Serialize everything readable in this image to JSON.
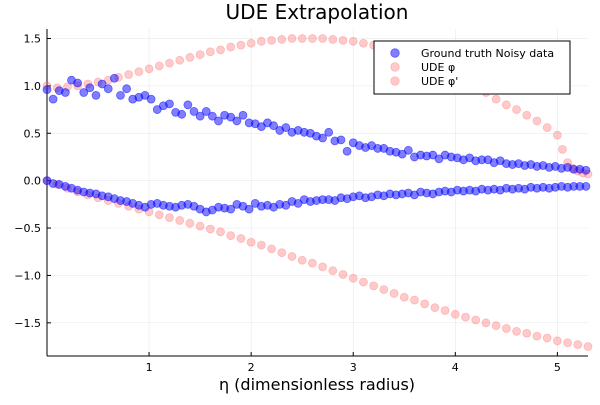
{
  "chart_data": {
    "type": "scatter",
    "title": "UDE Extrapolation",
    "xlabel": "η (dimensionless radius)",
    "ylabel": "",
    "xlim": [
      0.0,
      5.3
    ],
    "ylim": [
      -1.85,
      1.6
    ],
    "x_ticks": [
      1,
      2,
      3,
      4,
      5
    ],
    "y_ticks": [
      1.5,
      1.0,
      0.5,
      0.0,
      -0.5,
      -1.0,
      -1.5
    ],
    "x_tick_labels": [
      "1",
      "2",
      "3",
      "4",
      "5"
    ],
    "y_tick_labels": [
      "1.5",
      "1.0",
      "0.5",
      "0.0",
      "−0.5",
      "−1.0",
      "−1.5"
    ],
    "grid": true,
    "legend_position": "top-right",
    "series": [
      {
        "name": "Ground truth Noisy data",
        "color": "#0000FF",
        "opacity": 0.5,
        "points": [
          [
            0.0,
            0.96
          ],
          [
            0.06,
            0.86
          ],
          [
            0.12,
            0.95
          ],
          [
            0.18,
            0.93
          ],
          [
            0.24,
            1.06
          ],
          [
            0.3,
            1.03
          ],
          [
            0.36,
            0.93
          ],
          [
            0.42,
            0.98
          ],
          [
            0.48,
            0.9
          ],
          [
            0.54,
            1.02
          ],
          [
            0.6,
            0.97
          ],
          [
            0.66,
            1.08
          ],
          [
            0.72,
            0.9
          ],
          [
            0.78,
            0.97
          ],
          [
            0.84,
            0.86
          ],
          [
            0.9,
            0.88
          ],
          [
            0.96,
            0.9
          ],
          [
            1.02,
            0.86
          ],
          [
            1.08,
            0.75
          ],
          [
            1.14,
            0.79
          ],
          [
            1.2,
            0.81
          ],
          [
            1.26,
            0.72
          ],
          [
            1.32,
            0.7
          ],
          [
            1.38,
            0.8
          ],
          [
            1.44,
            0.73
          ],
          [
            1.5,
            0.68
          ],
          [
            1.56,
            0.73
          ],
          [
            1.62,
            0.68
          ],
          [
            1.68,
            0.63
          ],
          [
            1.74,
            0.69
          ],
          [
            1.8,
            0.67
          ],
          [
            1.86,
            0.63
          ],
          [
            1.92,
            0.69
          ],
          [
            1.98,
            0.61
          ],
          [
            2.04,
            0.6
          ],
          [
            2.1,
            0.57
          ],
          [
            2.16,
            0.61
          ],
          [
            2.22,
            0.58
          ],
          [
            2.28,
            0.53
          ],
          [
            2.34,
            0.56
          ],
          [
            2.4,
            0.51
          ],
          [
            2.46,
            0.53
          ],
          [
            2.52,
            0.51
          ],
          [
            2.58,
            0.5
          ],
          [
            2.64,
            0.47
          ],
          [
            2.7,
            0.45
          ],
          [
            2.76,
            0.51
          ],
          [
            2.82,
            0.42
          ],
          [
            2.88,
            0.43
          ],
          [
            2.94,
            0.31
          ],
          [
            3.0,
            0.4
          ],
          [
            3.06,
            0.37
          ],
          [
            3.12,
            0.35
          ],
          [
            3.18,
            0.37
          ],
          [
            3.24,
            0.34
          ],
          [
            3.3,
            0.34
          ],
          [
            3.36,
            0.31
          ],
          [
            3.42,
            0.3
          ],
          [
            3.48,
            0.28
          ],
          [
            3.54,
            0.32
          ],
          [
            3.6,
            0.25
          ],
          [
            3.66,
            0.27
          ],
          [
            3.72,
            0.26
          ],
          [
            3.78,
            0.27
          ],
          [
            3.84,
            0.23
          ],
          [
            3.9,
            0.27
          ],
          [
            3.96,
            0.25
          ],
          [
            4.02,
            0.24
          ],
          [
            4.08,
            0.22
          ],
          [
            4.14,
            0.24
          ],
          [
            4.2,
            0.21
          ],
          [
            4.26,
            0.22
          ],
          [
            4.32,
            0.22
          ],
          [
            4.38,
            0.19
          ],
          [
            4.44,
            0.21
          ],
          [
            4.5,
            0.18
          ],
          [
            4.56,
            0.17
          ],
          [
            4.62,
            0.18
          ],
          [
            4.68,
            0.16
          ],
          [
            4.74,
            0.17
          ],
          [
            4.8,
            0.15
          ],
          [
            4.86,
            0.16
          ],
          [
            4.92,
            0.14
          ],
          [
            4.98,
            0.15
          ],
          [
            5.04,
            0.13
          ],
          [
            5.1,
            0.14
          ],
          [
            5.16,
            0.12
          ],
          [
            5.22,
            0.12
          ],
          [
            5.28,
            0.11
          ],
          [
            0.0,
            0.0
          ],
          [
            0.06,
            -0.03
          ],
          [
            0.12,
            -0.04
          ],
          [
            0.18,
            -0.06
          ],
          [
            0.24,
            -0.08
          ],
          [
            0.3,
            -0.1
          ],
          [
            0.36,
            -0.12
          ],
          [
            0.42,
            -0.13
          ],
          [
            0.48,
            -0.14
          ],
          [
            0.54,
            -0.16
          ],
          [
            0.6,
            -0.17
          ],
          [
            0.66,
            -0.19
          ],
          [
            0.72,
            -0.21
          ],
          [
            0.78,
            -0.22
          ],
          [
            0.84,
            -0.24
          ],
          [
            0.9,
            -0.26
          ],
          [
            0.96,
            -0.28
          ],
          [
            1.02,
            -0.25
          ],
          [
            1.08,
            -0.24
          ],
          [
            1.14,
            -0.26
          ],
          [
            1.2,
            -0.27
          ],
          [
            1.26,
            -0.28
          ],
          [
            1.32,
            -0.26
          ],
          [
            1.38,
            -0.25
          ],
          [
            1.44,
            -0.27
          ],
          [
            1.5,
            -0.3
          ],
          [
            1.56,
            -0.33
          ],
          [
            1.62,
            -0.31
          ],
          [
            1.68,
            -0.28
          ],
          [
            1.74,
            -0.29
          ],
          [
            1.8,
            -0.3
          ],
          [
            1.86,
            -0.25
          ],
          [
            1.92,
            -0.27
          ],
          [
            1.98,
            -0.3
          ],
          [
            2.04,
            -0.24
          ],
          [
            2.1,
            -0.27
          ],
          [
            2.16,
            -0.26
          ],
          [
            2.22,
            -0.28
          ],
          [
            2.28,
            -0.25
          ],
          [
            2.34,
            -0.26
          ],
          [
            2.4,
            -0.22
          ],
          [
            2.46,
            -0.24
          ],
          [
            2.52,
            -0.2
          ],
          [
            2.58,
            -0.22
          ],
          [
            2.64,
            -0.21
          ],
          [
            2.7,
            -0.2
          ],
          [
            2.76,
            -0.2
          ],
          [
            2.82,
            -0.21
          ],
          [
            2.88,
            -0.18
          ],
          [
            2.94,
            -0.19
          ],
          [
            3.0,
            -0.17
          ],
          [
            3.06,
            -0.16
          ],
          [
            3.12,
            -0.18
          ],
          [
            3.18,
            -0.17
          ],
          [
            3.24,
            -0.15
          ],
          [
            3.3,
            -0.16
          ],
          [
            3.36,
            -0.14
          ],
          [
            3.42,
            -0.15
          ],
          [
            3.48,
            -0.14
          ],
          [
            3.54,
            -0.13
          ],
          [
            3.6,
            -0.15
          ],
          [
            3.66,
            -0.12
          ],
          [
            3.72,
            -0.13
          ],
          [
            3.78,
            -0.14
          ],
          [
            3.84,
            -0.12
          ],
          [
            3.9,
            -0.11
          ],
          [
            3.96,
            -0.12
          ],
          [
            4.02,
            -0.1
          ],
          [
            4.08,
            -0.11
          ],
          [
            4.14,
            -0.1
          ],
          [
            4.2,
            -0.11
          ],
          [
            4.26,
            -0.09
          ],
          [
            4.32,
            -0.1
          ],
          [
            4.38,
            -0.09
          ],
          [
            4.44,
            -0.1
          ],
          [
            4.5,
            -0.08
          ],
          [
            4.56,
            -0.09
          ],
          [
            4.62,
            -0.08
          ],
          [
            4.68,
            -0.09
          ],
          [
            4.74,
            -0.07
          ],
          [
            4.8,
            -0.08
          ],
          [
            4.86,
            -0.07
          ],
          [
            4.92,
            -0.08
          ],
          [
            4.98,
            -0.07
          ],
          [
            5.04,
            -0.06
          ],
          [
            5.1,
            -0.07
          ],
          [
            5.16,
            -0.06
          ],
          [
            5.22,
            -0.06
          ],
          [
            5.28,
            -0.06
          ]
        ]
      },
      {
        "name": "UDE φ",
        "color": "#FF6666",
        "opacity": 0.35,
        "points": [
          [
            0.0,
            1.0
          ],
          [
            0.1,
            0.98
          ],
          [
            0.2,
            0.99
          ],
          [
            0.3,
            1.0
          ],
          [
            0.4,
            1.02
          ],
          [
            0.5,
            1.04
          ],
          [
            0.6,
            1.06
          ],
          [
            0.7,
            1.09
          ],
          [
            0.8,
            1.12
          ],
          [
            0.9,
            1.15
          ],
          [
            1.0,
            1.18
          ],
          [
            1.1,
            1.21
          ],
          [
            1.2,
            1.24
          ],
          [
            1.3,
            1.27
          ],
          [
            1.4,
            1.3
          ],
          [
            1.5,
            1.33
          ],
          [
            1.6,
            1.36
          ],
          [
            1.7,
            1.38
          ],
          [
            1.8,
            1.41
          ],
          [
            1.9,
            1.43
          ],
          [
            2.0,
            1.45
          ],
          [
            2.1,
            1.47
          ],
          [
            2.2,
            1.48
          ],
          [
            2.3,
            1.49
          ],
          [
            2.4,
            1.5
          ],
          [
            2.5,
            1.5
          ],
          [
            2.6,
            1.5
          ],
          [
            2.7,
            1.5
          ],
          [
            2.8,
            1.49
          ],
          [
            2.9,
            1.48
          ],
          [
            3.0,
            1.47
          ],
          [
            3.1,
            1.45
          ],
          [
            3.2,
            1.43
          ],
          [
            3.3,
            1.41
          ],
          [
            3.4,
            1.38
          ],
          [
            3.5,
            1.35
          ],
          [
            3.6,
            1.31
          ],
          [
            3.7,
            1.27
          ],
          [
            3.8,
            1.22
          ],
          [
            3.9,
            1.17
          ],
          [
            4.0,
            1.12
          ],
          [
            4.1,
            1.06
          ],
          [
            4.2,
            1.0
          ],
          [
            4.3,
            0.93
          ],
          [
            4.4,
            0.86
          ],
          [
            4.5,
            0.8
          ],
          [
            4.6,
            0.75
          ],
          [
            4.7,
            0.69
          ],
          [
            4.8,
            0.63
          ],
          [
            4.9,
            0.56
          ],
          [
            5.0,
            0.48
          ],
          [
            5.05,
            0.33
          ],
          [
            5.1,
            0.19
          ],
          [
            5.15,
            0.13
          ],
          [
            5.2,
            0.1
          ],
          [
            5.25,
            0.08
          ],
          [
            5.3,
            0.07
          ]
        ]
      },
      {
        "name": "UDE φ'",
        "color": "#FF6666",
        "opacity": 0.35,
        "points": [
          [
            0.0,
            0.0
          ],
          [
            0.1,
            -0.04
          ],
          [
            0.2,
            -0.08
          ],
          [
            0.3,
            -0.12
          ],
          [
            0.4,
            -0.15
          ],
          [
            0.5,
            -0.18
          ],
          [
            0.6,
            -0.21
          ],
          [
            0.7,
            -0.24
          ],
          [
            0.8,
            -0.27
          ],
          [
            0.9,
            -0.3
          ],
          [
            1.0,
            -0.33
          ],
          [
            1.1,
            -0.36
          ],
          [
            1.2,
            -0.39
          ],
          [
            1.3,
            -0.42
          ],
          [
            1.4,
            -0.45
          ],
          [
            1.5,
            -0.48
          ],
          [
            1.6,
            -0.51
          ],
          [
            1.7,
            -0.54
          ],
          [
            1.8,
            -0.58
          ],
          [
            1.9,
            -0.61
          ],
          [
            2.0,
            -0.65
          ],
          [
            2.1,
            -0.68
          ],
          [
            2.2,
            -0.72
          ],
          [
            2.3,
            -0.76
          ],
          [
            2.4,
            -0.8
          ],
          [
            2.5,
            -0.84
          ],
          [
            2.6,
            -0.87
          ],
          [
            2.7,
            -0.91
          ],
          [
            2.8,
            -0.95
          ],
          [
            2.9,
            -0.99
          ],
          [
            3.0,
            -1.03
          ],
          [
            3.1,
            -1.07
          ],
          [
            3.2,
            -1.11
          ],
          [
            3.3,
            -1.15
          ],
          [
            3.4,
            -1.19
          ],
          [
            3.5,
            -1.23
          ],
          [
            3.6,
            -1.26
          ],
          [
            3.7,
            -1.3
          ],
          [
            3.8,
            -1.34
          ],
          [
            3.9,
            -1.37
          ],
          [
            4.0,
            -1.41
          ],
          [
            4.1,
            -1.44
          ],
          [
            4.2,
            -1.47
          ],
          [
            4.3,
            -1.5
          ],
          [
            4.4,
            -1.53
          ],
          [
            4.5,
            -1.56
          ],
          [
            4.6,
            -1.59
          ],
          [
            4.7,
            -1.61
          ],
          [
            4.8,
            -1.64
          ],
          [
            4.9,
            -1.66
          ],
          [
            5.0,
            -1.69
          ],
          [
            5.1,
            -1.71
          ],
          [
            5.2,
            -1.73
          ],
          [
            5.3,
            -1.75
          ]
        ]
      }
    ]
  }
}
